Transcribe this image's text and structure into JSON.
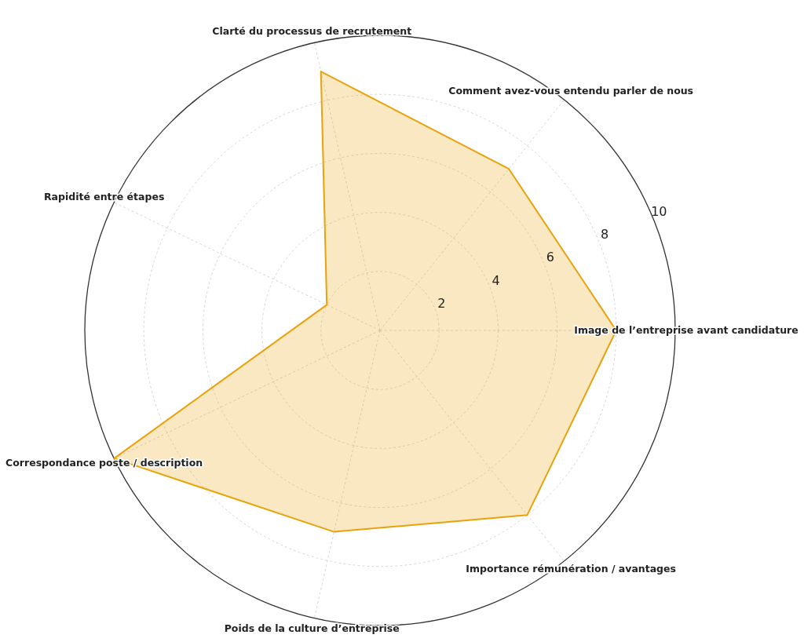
{
  "chart_data": {
    "type": "radar",
    "categories": [
      "Clarté du processus de recrutement",
      "Comment avez-vous entendu parler de nous",
      "Image de l’entreprise avant candidature",
      "Importance rémunération / avantages",
      "Poids de la culture d’entreprise",
      "Correspondance poste / description",
      "Rapidité entre étapes"
    ],
    "series": [
      {
        "color": "#e8a20c",
        "values": [
          9,
          7,
          8,
          8,
          7,
          10,
          2
        ]
      }
    ],
    "ylim": [
      0,
      10
    ],
    "yticks": [
      2,
      4,
      6,
      8,
      10
    ],
    "grid": true
  }
}
